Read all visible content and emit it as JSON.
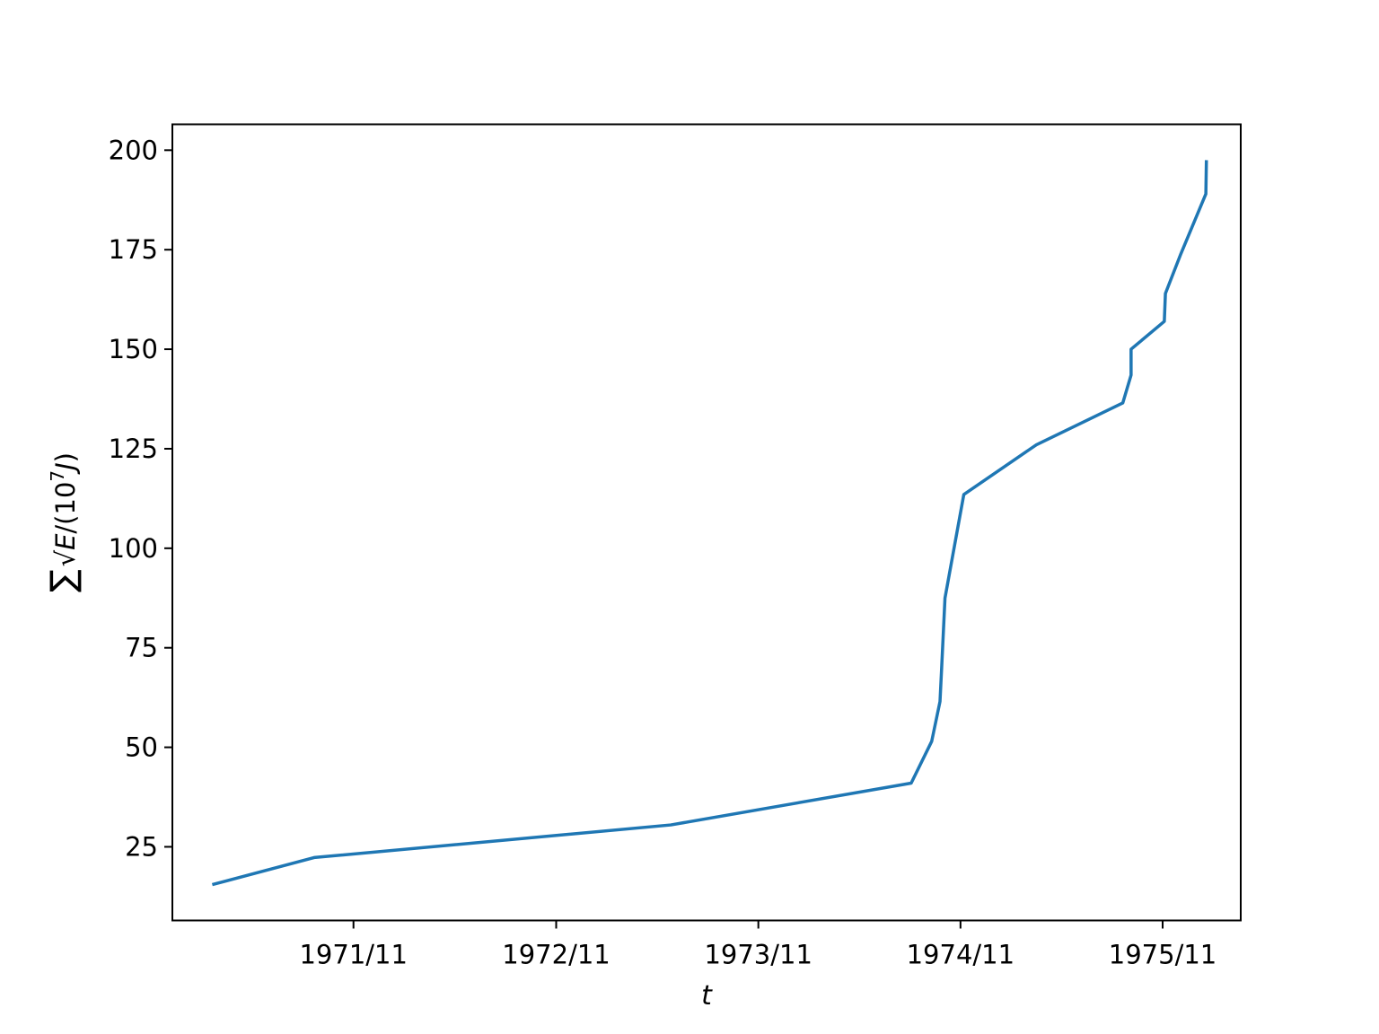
{
  "chart_data": {
    "type": "line",
    "title": "",
    "xlabel": "t",
    "ylabel": {
      "prefix": "∑",
      "radicand": "E",
      "unit_open": "/(10",
      "exponent": "7",
      "unit_var": "J",
      "unit_close": ")"
    },
    "x_ticks": [
      "1971/11",
      "1972/11",
      "1973/11",
      "1974/11",
      "1975/11"
    ],
    "y_ticks": [
      25,
      50,
      75,
      100,
      125,
      150,
      175,
      200
    ],
    "ylim": [
      6.5,
      206.5
    ],
    "xlim": [
      "1970/12/09",
      "1976/03/21"
    ],
    "grid": false,
    "legend": "none",
    "colors": {
      "line": "#1f77b4",
      "axes": "#000000"
    },
    "series": [
      {
        "x": [
          "1971/02/19",
          "1971/08/22",
          "1973/05/27",
          "1974/08/04",
          "1974/09/10",
          "1974/09/25",
          "1974/09/28",
          "1974/10/04",
          "1974/11/07",
          "1975/03/18",
          "1975/08/21",
          "1975/09/05",
          "1975/09/05",
          "1975/11/04",
          "1975/11/06",
          "1975/12/04",
          "1976/01/18",
          "1976/01/19"
        ],
        "y": [
          15.5,
          22.3,
          30.5,
          41,
          51.5,
          61.5,
          70,
          87.5,
          113.5,
          126,
          136.5,
          143.5,
          150,
          157,
          164,
          174,
          189,
          197.5
        ]
      }
    ]
  }
}
